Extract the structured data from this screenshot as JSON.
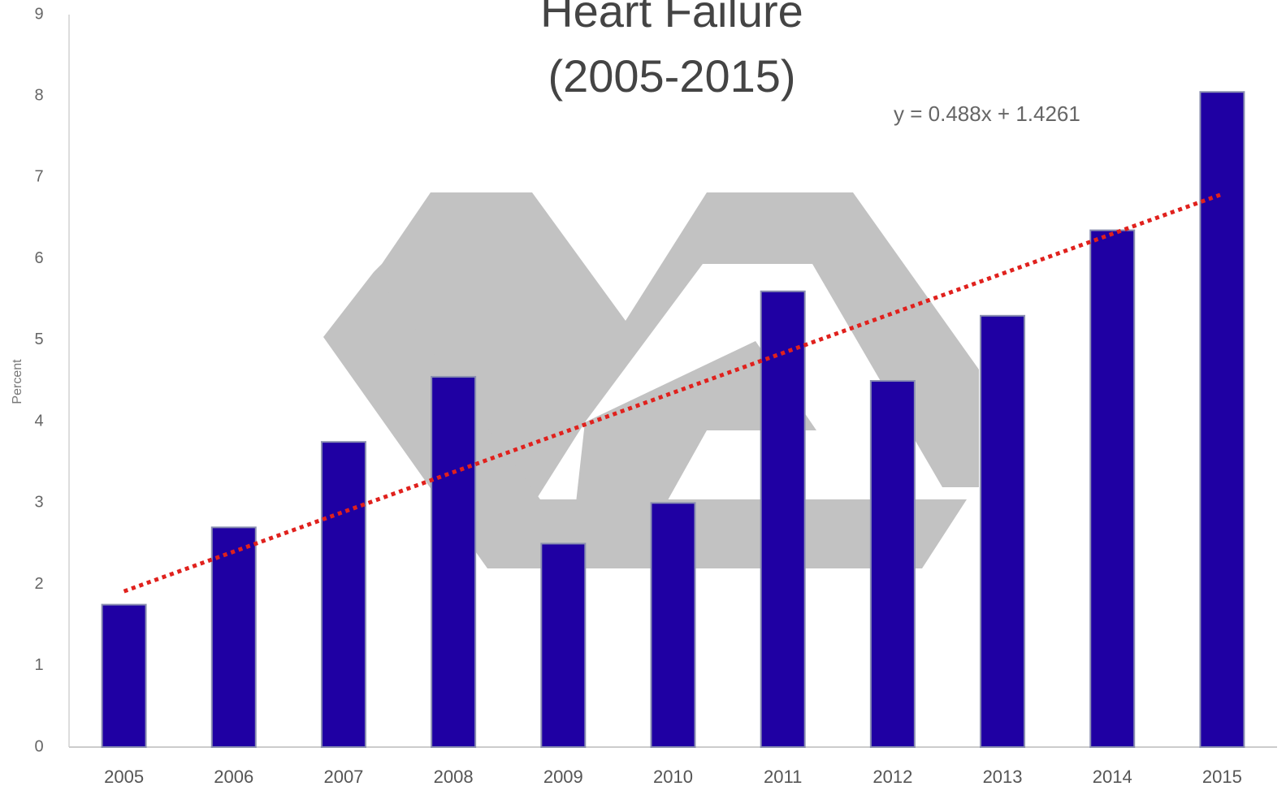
{
  "chart_data": {
    "type": "bar",
    "title": [
      "Heart Failure",
      "(2005-2015)"
    ],
    "y_label": "Percent",
    "annotation": "y = 0.488x + 1.4261",
    "categories": [
      "2005",
      "2006",
      "2007",
      "2008",
      "2009",
      "2010",
      "2011",
      "2012",
      "2013",
      "2014",
      "2015"
    ],
    "values": [
      1.75,
      2.7,
      3.75,
      4.55,
      2.5,
      3.0,
      5.6,
      4.5,
      5.3,
      6.35,
      8.05
    ],
    "color": "#1f00a3",
    "trendline": {
      "slope": 0.488,
      "intercept": 1.4261,
      "color": "#e0211d"
    },
    "ylim": [
      0,
      9
    ],
    "yticks": [
      0,
      1,
      2,
      3,
      4,
      5,
      6,
      7,
      8,
      9
    ],
    "grid": false
  }
}
